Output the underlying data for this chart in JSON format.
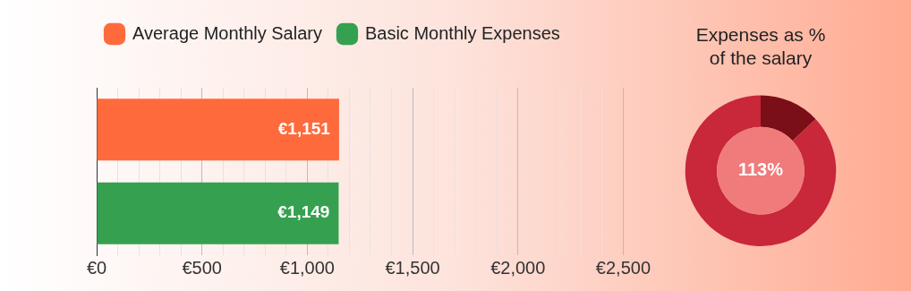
{
  "chart_data": [
    {
      "type": "bar",
      "orientation": "horizontal",
      "categories": [
        null,
        null
      ],
      "series": [
        {
          "name": "Average Monthly Salary",
          "color": "#ff6a3d",
          "values": [
            1151,
            null
          ],
          "value_labels": [
            "€1,151",
            null
          ]
        },
        {
          "name": "Basic Monthly Expenses",
          "color": "#35a150",
          "values": [
            null,
            1149
          ],
          "value_labels": [
            null,
            "€1,149"
          ]
        }
      ],
      "xlim": [
        0,
        2500
      ],
      "xticks": [
        {
          "value": 0,
          "label": "€0"
        },
        {
          "value": 100,
          "label": null
        },
        {
          "value": 200,
          "label": null
        },
        {
          "value": 300,
          "label": null
        },
        {
          "value": 400,
          "label": null
        },
        {
          "value": 500,
          "label": "€500"
        },
        {
          "value": 600,
          "label": null
        },
        {
          "value": 700,
          "label": null
        },
        {
          "value": 800,
          "label": null
        },
        {
          "value": 900,
          "label": null
        },
        {
          "value": 1000,
          "label": "€1,000"
        },
        {
          "value": 1100,
          "label": null
        },
        {
          "value": 1200,
          "label": null
        },
        {
          "value": 1300,
          "label": null
        },
        {
          "value": 1400,
          "label": null
        },
        {
          "value": 1500,
          "label": "€1,500"
        },
        {
          "value": 1600,
          "label": null
        },
        {
          "value": 1700,
          "label": null
        },
        {
          "value": 1800,
          "label": null
        },
        {
          "value": 1900,
          "label": null
        },
        {
          "value": 2000,
          "label": "€2,000"
        },
        {
          "value": 2100,
          "label": null
        },
        {
          "value": 2200,
          "label": null
        },
        {
          "value": 2300,
          "label": null
        },
        {
          "value": 2400,
          "label": null
        },
        {
          "value": 2500,
          "label": "€2,500"
        }
      ],
      "grid": "x",
      "legend": "top left"
    },
    {
      "type": "donut",
      "title": "Expenses as %\nof the salary",
      "categories": [
        null,
        null
      ],
      "values": [
        13,
        87
      ],
      "colors": [
        "#7a0f18",
        "#c8283a"
      ],
      "annotations": [
        "113%"
      ]
    }
  ]
}
